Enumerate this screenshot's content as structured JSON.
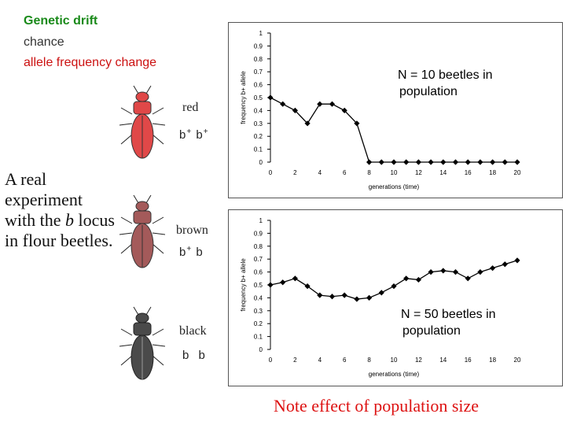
{
  "slide": {
    "title_line1": "Genetic drift",
    "title_line2": "chance",
    "title_line3": "allele frequency change",
    "experiment_text_pre": "A real experiment with the ",
    "experiment_text_locus": "b",
    "experiment_text_post": " locus in flour beetles.",
    "note": "Note effect of population size",
    "colors": {
      "title": "#1a8a1a",
      "accent": "#dd1111",
      "axis": "#000000",
      "series": "#000000"
    }
  },
  "beetles": [
    {
      "label": "red",
      "genotype_a": "b",
      "genotype_a_sup": "+",
      "genotype_b": "b",
      "genotype_b_sup": "+",
      "color": "#e04848",
      "icon": "red-beetle-icon"
    },
    {
      "label": "brown",
      "genotype_a": "b",
      "genotype_a_sup": "+",
      "genotype_b": "b",
      "genotype_b_sup": "",
      "color": "#a45a5a",
      "icon": "brown-beetle-icon"
    },
    {
      "label": "black",
      "genotype_a": "b",
      "genotype_a_sup": "",
      "genotype_b": "b",
      "genotype_b_sup": "",
      "color": "#4a4a4a",
      "icon": "black-beetle-icon"
    }
  ],
  "chart_data": [
    {
      "type": "line",
      "annotation": "N = 10 beetles in population",
      "xlabel": "generations (time)",
      "ylabel": "frequency b+ allele",
      "xlim": [
        0,
        20
      ],
      "ylim": [
        0,
        1
      ],
      "xticks": [
        0,
        2,
        4,
        6,
        8,
        10,
        12,
        14,
        16,
        18,
        20
      ],
      "yticks": [
        1,
        0.9,
        0.8,
        0.7,
        0.6,
        0.5,
        0.4,
        0.3,
        0.2,
        0.1,
        0
      ],
      "grid": false,
      "x": [
        0,
        1,
        2,
        3,
        4,
        5,
        6,
        7,
        8,
        9,
        10,
        11,
        12,
        13,
        14,
        15,
        16,
        17,
        18,
        19,
        20
      ],
      "y": [
        0.5,
        0.45,
        0.4,
        0.3,
        0.45,
        0.45,
        0.4,
        0.3,
        0,
        0,
        0,
        0,
        0,
        0,
        0,
        0,
        0,
        0,
        0,
        0,
        0
      ]
    },
    {
      "type": "line",
      "annotation": "N = 50 beetles in population",
      "xlabel": "generations (time)",
      "ylabel": "frequency b+ allele",
      "xlim": [
        0,
        20
      ],
      "ylim": [
        0,
        1
      ],
      "xticks": [
        0,
        2,
        4,
        6,
        8,
        10,
        12,
        14,
        16,
        18,
        20
      ],
      "yticks": [
        1,
        0.9,
        0.8,
        0.7,
        0.6,
        0.5,
        0.4,
        0.3,
        0.2,
        0.1,
        0
      ],
      "grid": false,
      "x": [
        0,
        1,
        2,
        3,
        4,
        5,
        6,
        7,
        8,
        9,
        10,
        11,
        12,
        13,
        14,
        15,
        16,
        17,
        18,
        19,
        20
      ],
      "y": [
        0.5,
        0.52,
        0.55,
        0.49,
        0.42,
        0.41,
        0.42,
        0.39,
        0.4,
        0.44,
        0.49,
        0.55,
        0.54,
        0.6,
        0.61,
        0.6,
        0.55,
        0.6,
        0.63,
        0.66,
        0.69
      ]
    }
  ]
}
